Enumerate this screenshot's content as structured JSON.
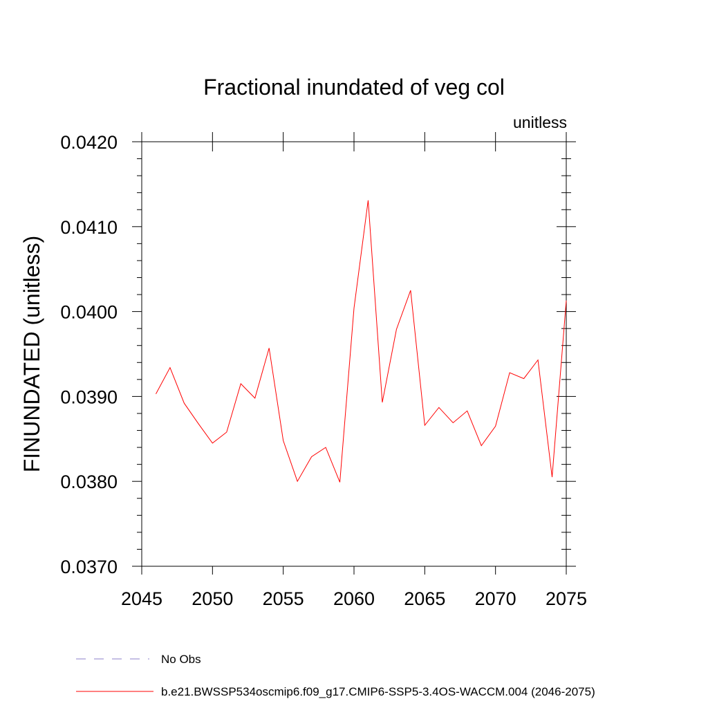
{
  "chart_data": {
    "type": "line",
    "title": "Fractional inundated of veg col",
    "units_label": "unitless",
    "xlabel": "",
    "ylabel": "FINUNDATED  (unitless)",
    "xlim": [
      2045,
      2075
    ],
    "ylim": [
      0.037,
      0.042
    ],
    "x_ticks": [
      2045,
      2050,
      2055,
      2060,
      2065,
      2070,
      2075
    ],
    "x_tick_labels": [
      "2045",
      "2050",
      "2055",
      "2060",
      "2065",
      "2070",
      "2075"
    ],
    "y_ticks": [
      0.037,
      0.038,
      0.039,
      0.04,
      0.041,
      0.042
    ],
    "y_tick_labels": [
      "0.0370",
      "0.0380",
      "0.0390",
      "0.0400",
      "0.0410",
      "0.0420"
    ],
    "series": [
      {
        "name": "b.e21.BWSSP534oscmip6.f09_g17.CMIP6-SSP5-3.4OS-WACCM.004 (2046-2075)",
        "color": "#ff0000",
        "style": "solid",
        "x": [
          2046,
          2047,
          2048,
          2049,
          2050,
          2051,
          2052,
          2053,
          2054,
          2055,
          2056,
          2057,
          2058,
          2059,
          2060,
          2061,
          2062,
          2063,
          2064,
          2065,
          2066,
          2067,
          2068,
          2069,
          2070,
          2071,
          2072,
          2073,
          2074,
          2075
        ],
        "values": [
          0.03903,
          0.03934,
          0.03892,
          0.03868,
          0.03845,
          0.03858,
          0.03915,
          0.03898,
          0.03957,
          0.03848,
          0.038,
          0.03829,
          0.0384,
          0.03799,
          0.04004,
          0.04131,
          0.03893,
          0.03979,
          0.04025,
          0.03866,
          0.03887,
          0.03869,
          0.03883,
          0.03842,
          0.03865,
          0.03928,
          0.03921,
          0.03943,
          0.03805,
          0.04013
        ]
      }
    ],
    "legend": [
      {
        "label": "No Obs",
        "color": "#8b7fc8",
        "style": "dashed"
      },
      {
        "label": "b.e21.BWSSP534oscmip6.f09_g17.CMIP6-SSP5-3.4OS-WACCM.004 (2046-2075)",
        "color": "#ff0000",
        "style": "solid"
      }
    ],
    "legend_placement": "bottom-left",
    "grid": false
  }
}
